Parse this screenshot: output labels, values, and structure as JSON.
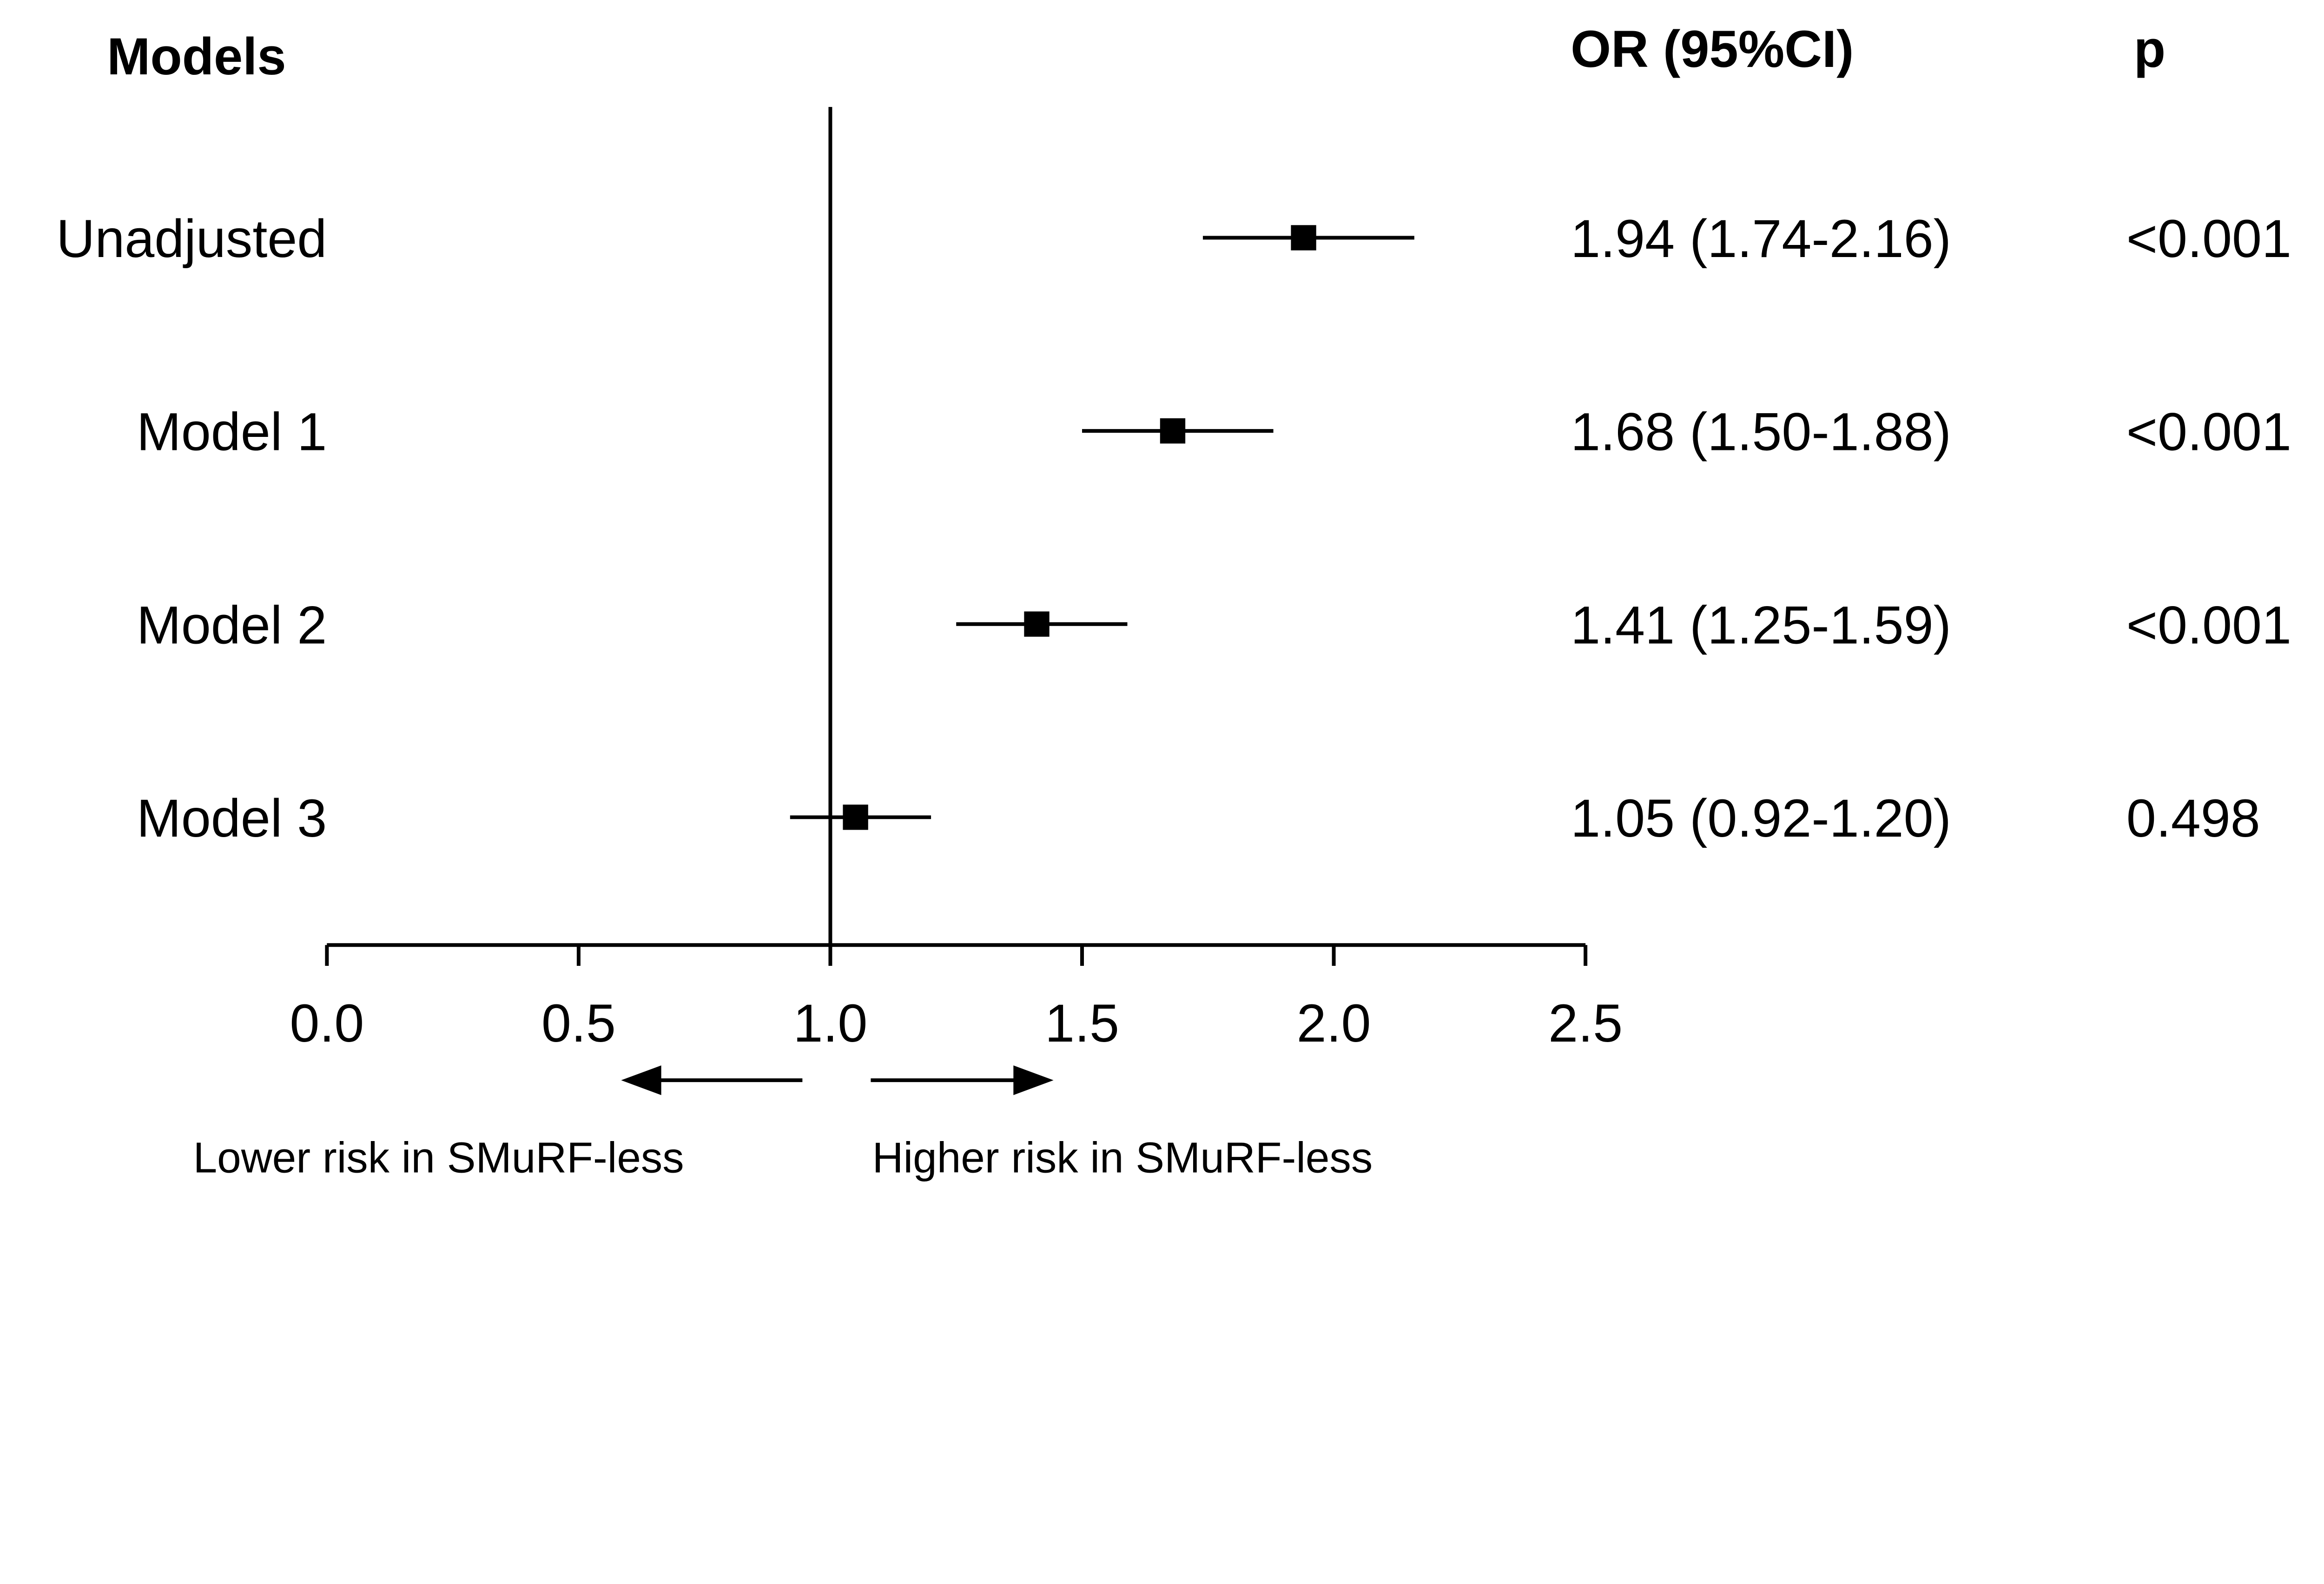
{
  "chart_data": {
    "type": "forest",
    "headers": {
      "models": "Models",
      "or": "OR (95%CI)",
      "p": "p"
    },
    "rows": [
      {
        "label": "Unadjusted",
        "or": 1.94,
        "lo": 1.74,
        "hi": 2.16,
        "or_text": "1.94 (1.74-2.16)",
        "p": "<0.001"
      },
      {
        "label": "Model 1",
        "or": 1.68,
        "lo": 1.5,
        "hi": 1.88,
        "or_text": "1.68 (1.50-1.88)",
        "p": "<0.001"
      },
      {
        "label": "Model 2",
        "or": 1.41,
        "lo": 1.25,
        "hi": 1.59,
        "or_text": "1.41 (1.25-1.59)",
        "p": "<0.001"
      },
      {
        "label": "Model 3",
        "or": 1.05,
        "lo": 0.92,
        "hi": 1.2,
        "or_text": "1.05 (0.92-1.20)",
        "p": "0.498"
      }
    ],
    "xlim": [
      0.0,
      2.5
    ],
    "xticks": [
      "0.0",
      "0.5",
      "1.0",
      "1.5",
      "2.0",
      "2.5"
    ],
    "reference_line": 1.0,
    "direction_labels": {
      "left": "Lower risk in SMuRF-less",
      "right": "Higher risk in SMuRF-less"
    },
    "marker_color": "#000000"
  }
}
